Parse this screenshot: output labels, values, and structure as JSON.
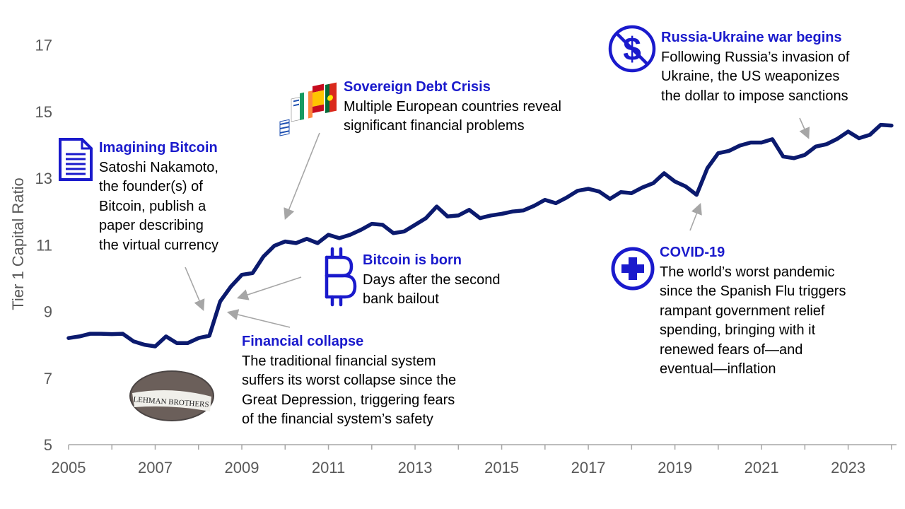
{
  "chart_data": {
    "type": "line",
    "ylabel": "Tier 1 Capital Ratio",
    "xlabel": "",
    "title": "",
    "ylim": [
      5,
      17.5
    ],
    "xlim": [
      2005,
      2024.1
    ],
    "yticks": [
      5,
      7,
      9,
      11,
      13,
      15,
      17
    ],
    "xticks": [
      2005,
      2007,
      2009,
      2011,
      2013,
      2015,
      2017,
      2019,
      2021,
      2023
    ],
    "grid": false,
    "series_color": "#0b1a6e",
    "series": [
      {
        "x": [
          2005.0,
          2005.25,
          2005.5,
          2005.75,
          2006.0,
          2006.25,
          2006.5,
          2006.75,
          2007.0,
          2007.25,
          2007.5,
          2007.75,
          2008.0,
          2008.25,
          2008.5,
          2008.75,
          2009.0,
          2009.25,
          2009.5,
          2009.75,
          2010.0,
          2010.25,
          2010.5,
          2010.75,
          2011.0,
          2011.25,
          2011.5,
          2011.75,
          2012.0,
          2012.25,
          2012.5,
          2012.75,
          2013.0,
          2013.25,
          2013.5,
          2013.75,
          2014.0,
          2014.25,
          2014.5,
          2014.75,
          2015.0,
          2015.25,
          2015.5,
          2015.75,
          2016.0,
          2016.25,
          2016.5,
          2016.75,
          2017.0,
          2017.25,
          2017.5,
          2017.75,
          2018.0,
          2018.25,
          2018.5,
          2018.75,
          2019.0,
          2019.25,
          2019.5,
          2019.75,
          2020.0,
          2020.25,
          2020.5,
          2020.75,
          2021.0,
          2021.25,
          2021.5,
          2021.75,
          2022.0,
          2022.25,
          2022.5,
          2022.75,
          2023.0,
          2023.25,
          2023.5,
          2023.75,
          2024.0
        ],
        "values": [
          8.2,
          8.25,
          8.33,
          8.33,
          8.32,
          8.33,
          8.1,
          8.0,
          7.95,
          8.25,
          8.05,
          8.05,
          8.2,
          8.27,
          9.3,
          9.75,
          10.1,
          10.15,
          10.65,
          10.97,
          11.1,
          11.05,
          11.18,
          11.05,
          11.3,
          11.2,
          11.3,
          11.45,
          11.63,
          11.6,
          11.35,
          11.4,
          11.6,
          11.8,
          12.15,
          11.85,
          11.88,
          12.05,
          11.8,
          11.88,
          11.93,
          12.0,
          12.03,
          12.17,
          12.35,
          12.25,
          12.42,
          12.62,
          12.68,
          12.6,
          12.38,
          12.58,
          12.55,
          12.72,
          12.85,
          13.15,
          12.9,
          12.75,
          12.5,
          13.3,
          13.75,
          13.82,
          13.98,
          14.07,
          14.07,
          14.17,
          13.65,
          13.6,
          13.7,
          13.95,
          14.02,
          14.18,
          14.4,
          14.2,
          14.3,
          14.6,
          14.58
        ]
      }
    ]
  },
  "annotations": {
    "imagining_bitcoin": {
      "title": "Imagining Bitcoin",
      "lines": [
        "Satoshi Nakamoto,",
        "the founder(s) of",
        "Bitcoin, publish a",
        "paper describing",
        "the virtual currency"
      ]
    },
    "sovereign_debt": {
      "title": "Sovereign Debt Crisis",
      "lines": [
        "Multiple European countries reveal",
        "significant financial problems"
      ]
    },
    "bitcoin_born": {
      "title": "Bitcoin is born",
      "lines": [
        "Days after the second",
        "bank bailout"
      ]
    },
    "financial_collapse": {
      "title": "Financial collapse",
      "lines": [
        "The traditional financial system",
        "suffers its worst collapse since the",
        "Great Depression, triggering fears",
        "of the financial system’s safety"
      ]
    },
    "russia_ukraine": {
      "title": "Russia-Ukraine war begins",
      "lines": [
        "Following Russia’s invasion of",
        "Ukraine, the US weaponizes",
        "the dollar to impose sanctions"
      ]
    },
    "covid": {
      "title": "COVID-19",
      "lines": [
        "The world’s worst pandemic",
        "since the Spanish Flu triggers",
        "rampant government relief",
        "spending, bringing with it",
        "renewed fears of—and",
        "eventual—inflation"
      ]
    },
    "lehman_sign": "LEHMAN BROTHERS"
  },
  "colors": {
    "line": "#0b1a6e",
    "title_text": "#1a1acc",
    "icon": "#1a1acc",
    "arrow": "#a6a6a6",
    "axis": "#595959"
  },
  "icons": [
    "document-icon",
    "european-flags-icon",
    "bitcoin-icon",
    "no-dollar-icon",
    "medical-cross-icon",
    "lehman-brothers-photo"
  ]
}
